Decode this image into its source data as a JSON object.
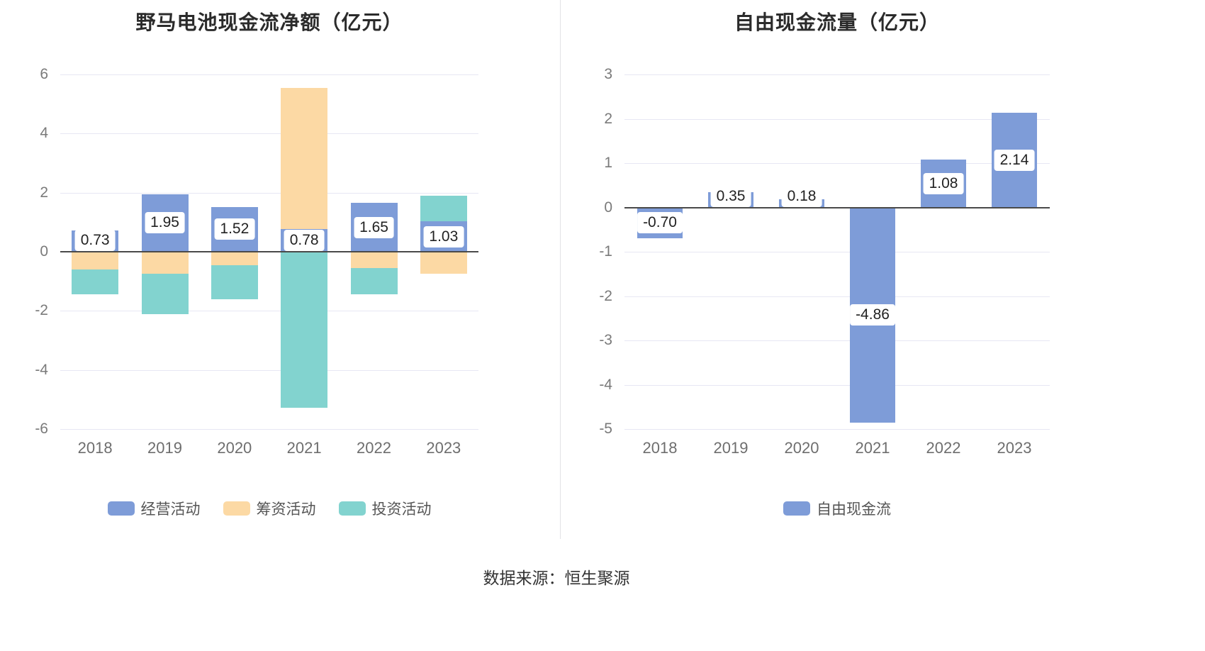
{
  "chart_data": [
    {
      "type": "bar",
      "stacked": true,
      "title": "野马电池现金流净额（亿元）",
      "categories": [
        "2018",
        "2019",
        "2020",
        "2021",
        "2022",
        "2023"
      ],
      "series": [
        {
          "name": "经营活动",
          "color": "#7e9cd8",
          "values": [
            0.73,
            1.95,
            1.52,
            0.78,
            1.65,
            1.03
          ]
        },
        {
          "name": "筹资活动",
          "color": "#fcd9a4",
          "values": [
            -0.6,
            -0.75,
            -0.45,
            4.77,
            -0.55,
            -0.75
          ]
        },
        {
          "name": "投资活动",
          "color": "#82d3cf",
          "values": [
            -0.85,
            -1.35,
            -1.15,
            -5.27,
            -0.9,
            0.87
          ]
        }
      ],
      "value_labels": [
        "0.73",
        "1.95",
        "1.52",
        "0.78",
        "1.65",
        "1.03"
      ],
      "label_series": "经营活动",
      "ylim": [
        -6,
        6
      ],
      "yticks": [
        6,
        4,
        2,
        0,
        -2,
        -4,
        -6
      ],
      "legend": [
        "经营活动",
        "筹资活动",
        "投资活动"
      ],
      "legend_position": "bottom",
      "grid": true
    },
    {
      "type": "bar",
      "stacked": false,
      "title": "自由现金流量（亿元）",
      "categories": [
        "2018",
        "2019",
        "2020",
        "2021",
        "2022",
        "2023"
      ],
      "series": [
        {
          "name": "自由现金流",
          "color": "#7e9cd8",
          "values": [
            -0.7,
            0.35,
            0.18,
            -4.86,
            1.08,
            2.14
          ]
        }
      ],
      "value_labels": [
        "-0.70",
        "0.35",
        "0.18",
        "-4.86",
        "1.08",
        "2.14"
      ],
      "ylim": [
        -5,
        3
      ],
      "yticks": [
        3,
        2,
        1,
        0,
        -1,
        -2,
        -3,
        -4,
        -5
      ],
      "legend": [
        "自由现金流"
      ],
      "legend_position": "bottom",
      "grid": true
    }
  ],
  "footer": {
    "source": "数据来源：恒生聚源"
  }
}
